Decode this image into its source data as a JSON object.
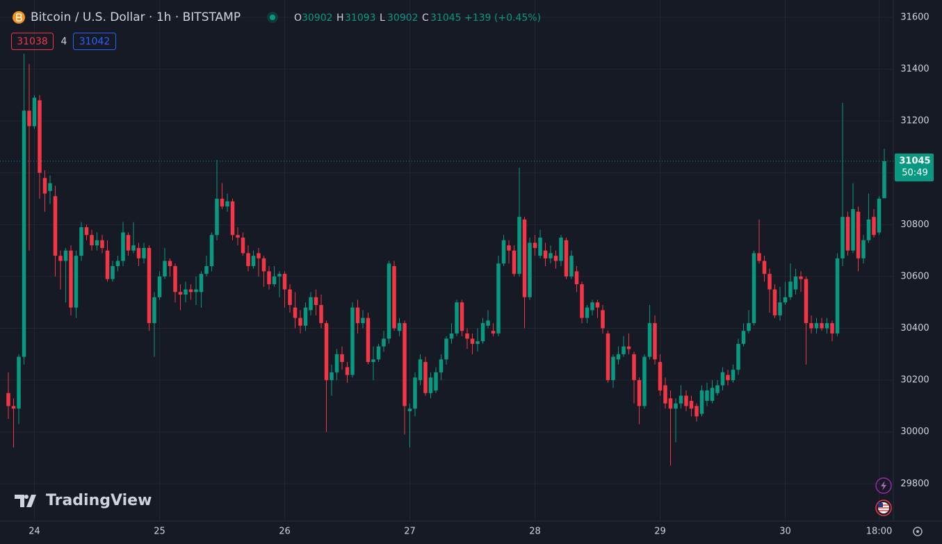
{
  "chart_data": {
    "type": "candlestick",
    "title": "Bitcoin / U.S. Dollar · 1h · BITSTAMP",
    "ohlc_letters": [
      "O",
      "H",
      "L",
      "C"
    ],
    "change": "+139 (+0.45%)",
    "bid": 31038,
    "spread": 4,
    "ask": 31042,
    "countdown": "50:49",
    "brand": "TradingView",
    "up_color": "#089981",
    "down_color": "#f23645",
    "ylim": [
      29656,
      31667
    ],
    "yticks": [
      29800,
      30000,
      30200,
      30400,
      30600,
      30800,
      31000,
      31200,
      31400,
      31600
    ],
    "grid": true,
    "categories": [
      null,
      null,
      null,
      null,
      null,
      "24",
      null,
      null,
      null,
      null,
      null,
      null,
      null,
      null,
      null,
      null,
      null,
      null,
      null,
      null,
      null,
      null,
      null,
      null,
      null,
      null,
      null,
      null,
      null,
      "25",
      null,
      null,
      null,
      null,
      null,
      null,
      null,
      null,
      null,
      null,
      null,
      null,
      null,
      null,
      null,
      null,
      null,
      null,
      null,
      null,
      null,
      null,
      null,
      "26",
      null,
      null,
      null,
      null,
      null,
      null,
      null,
      null,
      null,
      null,
      null,
      null,
      null,
      null,
      null,
      null,
      null,
      null,
      null,
      null,
      null,
      null,
      null,
      "27",
      null,
      null,
      null,
      null,
      null,
      null,
      null,
      null,
      null,
      null,
      null,
      null,
      null,
      null,
      null,
      null,
      null,
      null,
      null,
      null,
      null,
      null,
      null,
      "28",
      null,
      null,
      null,
      null,
      null,
      null,
      null,
      null,
      null,
      null,
      null,
      null,
      null,
      null,
      null,
      null,
      null,
      null,
      null,
      null,
      null,
      null,
      null,
      "29",
      null,
      null,
      null,
      null,
      null,
      null,
      null,
      null,
      null,
      null,
      null,
      null,
      null,
      null,
      null,
      null,
      null,
      null,
      null,
      null,
      null,
      null,
      null,
      "30",
      null,
      null,
      null,
      null,
      null,
      null,
      null,
      null,
      null,
      null,
      null,
      null,
      null,
      null,
      null,
      null,
      null,
      "18:00",
      null
    ],
    "values": [
      {
        "o": 30150,
        "h": 30230,
        "l": 30050,
        "c": 30100
      },
      {
        "o": 30100,
        "h": 30130,
        "l": 29940,
        "c": 30090
      },
      {
        "o": 30090,
        "h": 30300,
        "l": 30030,
        "c": 30290
      },
      {
        "o": 30290,
        "h": 31460,
        "l": 30260,
        "c": 31240
      },
      {
        "o": 31240,
        "h": 31420,
        "l": 30700,
        "c": 31180
      },
      {
        "o": 31180,
        "h": 31300,
        "l": 31170,
        "c": 31290
      },
      {
        "o": 31280,
        "h": 31300,
        "l": 30900,
        "c": 31000
      },
      {
        "o": 30980,
        "h": 31010,
        "l": 30850,
        "c": 30920
      },
      {
        "o": 30930,
        "h": 30990,
        "l": 30880,
        "c": 30960
      },
      {
        "o": 30910,
        "h": 30950,
        "l": 30600,
        "c": 30680
      },
      {
        "o": 30680,
        "h": 30700,
        "l": 30550,
        "c": 30660
      },
      {
        "o": 30660,
        "h": 30710,
        "l": 30500,
        "c": 30700
      },
      {
        "o": 30700,
        "h": 30720,
        "l": 30450,
        "c": 30480
      },
      {
        "o": 30480,
        "h": 30700,
        "l": 30440,
        "c": 30680
      },
      {
        "o": 30680,
        "h": 30810,
        "l": 30660,
        "c": 30790
      },
      {
        "o": 30790,
        "h": 30800,
        "l": 30740,
        "c": 30760
      },
      {
        "o": 30760,
        "h": 30780,
        "l": 30700,
        "c": 30720
      },
      {
        "o": 30720,
        "h": 30770,
        "l": 30700,
        "c": 30740
      },
      {
        "o": 30740,
        "h": 30760,
        "l": 30690,
        "c": 30710
      },
      {
        "o": 30700,
        "h": 30740,
        "l": 30580,
        "c": 30590
      },
      {
        "o": 30590,
        "h": 30660,
        "l": 30580,
        "c": 30640
      },
      {
        "o": 30640,
        "h": 30680,
        "l": 30620,
        "c": 30660
      },
      {
        "o": 30660,
        "h": 30810,
        "l": 30640,
        "c": 30770
      },
      {
        "o": 30760,
        "h": 30770,
        "l": 30680,
        "c": 30700
      },
      {
        "o": 30700,
        "h": 30810,
        "l": 30690,
        "c": 30720
      },
      {
        "o": 30710,
        "h": 30730,
        "l": 30640,
        "c": 30670
      },
      {
        "o": 30670,
        "h": 30730,
        "l": 30650,
        "c": 30710
      },
      {
        "o": 30710,
        "h": 30720,
        "l": 30390,
        "c": 30420
      },
      {
        "o": 30420,
        "h": 30540,
        "l": 30290,
        "c": 30520
      },
      {
        "o": 30520,
        "h": 30620,
        "l": 30510,
        "c": 30600
      },
      {
        "o": 30600,
        "h": 30710,
        "l": 30590,
        "c": 30660
      },
      {
        "o": 30660,
        "h": 30670,
        "l": 30600,
        "c": 30640
      },
      {
        "o": 30640,
        "h": 30650,
        "l": 30500,
        "c": 30540
      },
      {
        "o": 30540,
        "h": 30570,
        "l": 30470,
        "c": 30530
      },
      {
        "o": 30530,
        "h": 30580,
        "l": 30500,
        "c": 30550
      },
      {
        "o": 30550,
        "h": 30570,
        "l": 30510,
        "c": 30540
      },
      {
        "o": 30540,
        "h": 30600,
        "l": 30490,
        "c": 30550
      },
      {
        "o": 30540,
        "h": 30620,
        "l": 30480,
        "c": 30610
      },
      {
        "o": 30610,
        "h": 30680,
        "l": 30600,
        "c": 30640
      },
      {
        "o": 30640,
        "h": 30770,
        "l": 30620,
        "c": 30760
      },
      {
        "o": 30760,
        "h": 31050,
        "l": 30740,
        "c": 30900
      },
      {
        "o": 30900,
        "h": 30960,
        "l": 30860,
        "c": 30870
      },
      {
        "o": 30870,
        "h": 30920,
        "l": 30850,
        "c": 30890
      },
      {
        "o": 30890,
        "h": 30900,
        "l": 30740,
        "c": 30760
      },
      {
        "o": 30760,
        "h": 30790,
        "l": 30720,
        "c": 30750
      },
      {
        "o": 30750,
        "h": 30770,
        "l": 30680,
        "c": 30690
      },
      {
        "o": 30690,
        "h": 30720,
        "l": 30620,
        "c": 30640
      },
      {
        "o": 30640,
        "h": 30700,
        "l": 30630,
        "c": 30680
      },
      {
        "o": 30690,
        "h": 30710,
        "l": 30600,
        "c": 30670
      },
      {
        "o": 30670,
        "h": 30680,
        "l": 30560,
        "c": 30620
      },
      {
        "o": 30620,
        "h": 30640,
        "l": 30550,
        "c": 30570
      },
      {
        "o": 30570,
        "h": 30640,
        "l": 30560,
        "c": 30600
      },
      {
        "o": 30600,
        "h": 30620,
        "l": 30520,
        "c": 30610
      },
      {
        "o": 30610,
        "h": 30620,
        "l": 30480,
        "c": 30550
      },
      {
        "o": 30550,
        "h": 30570,
        "l": 30460,
        "c": 30490
      },
      {
        "o": 30480,
        "h": 30540,
        "l": 30400,
        "c": 30440
      },
      {
        "o": 30440,
        "h": 30470,
        "l": 30380,
        "c": 30410
      },
      {
        "o": 30410,
        "h": 30500,
        "l": 30390,
        "c": 30480
      },
      {
        "o": 30470,
        "h": 30540,
        "l": 30450,
        "c": 30520
      },
      {
        "o": 30520,
        "h": 30550,
        "l": 30450,
        "c": 30490
      },
      {
        "o": 30490,
        "h": 30530,
        "l": 30400,
        "c": 30420
      },
      {
        "o": 30420,
        "h": 30430,
        "l": 30000,
        "c": 30200
      },
      {
        "o": 30200,
        "h": 30260,
        "l": 30140,
        "c": 30230
      },
      {
        "o": 30230,
        "h": 30320,
        "l": 30200,
        "c": 30300
      },
      {
        "o": 30300,
        "h": 30330,
        "l": 30240,
        "c": 30270
      },
      {
        "o": 30250,
        "h": 30270,
        "l": 30190,
        "c": 30220
      },
      {
        "o": 30220,
        "h": 30500,
        "l": 30210,
        "c": 30480
      },
      {
        "o": 30480,
        "h": 30510,
        "l": 30380,
        "c": 30420
      },
      {
        "o": 30420,
        "h": 30470,
        "l": 30400,
        "c": 30440
      },
      {
        "o": 30440,
        "h": 30460,
        "l": 30260,
        "c": 30270
      },
      {
        "o": 30270,
        "h": 30330,
        "l": 30200,
        "c": 30280
      },
      {
        "o": 30280,
        "h": 30340,
        "l": 30270,
        "c": 30330
      },
      {
        "o": 30330,
        "h": 30390,
        "l": 30310,
        "c": 30360
      },
      {
        "o": 30360,
        "h": 30660,
        "l": 30340,
        "c": 30650
      },
      {
        "o": 30640,
        "h": 30660,
        "l": 30390,
        "c": 30400
      },
      {
        "o": 30390,
        "h": 30440,
        "l": 30370,
        "c": 30420
      },
      {
        "o": 30420,
        "h": 30430,
        "l": 29990,
        "c": 30100
      },
      {
        "o": 30080,
        "h": 30110,
        "l": 29940,
        "c": 30090
      },
      {
        "o": 30090,
        "h": 30230,
        "l": 30060,
        "c": 30210
      },
      {
        "o": 30200,
        "h": 30300,
        "l": 30180,
        "c": 30280
      },
      {
        "o": 30270,
        "h": 30290,
        "l": 30140,
        "c": 30150
      },
      {
        "o": 30150,
        "h": 30230,
        "l": 30130,
        "c": 30210
      },
      {
        "o": 30160,
        "h": 30250,
        "l": 30150,
        "c": 30230
      },
      {
        "o": 30230,
        "h": 30300,
        "l": 30200,
        "c": 30280
      },
      {
        "o": 30280,
        "h": 30370,
        "l": 30260,
        "c": 30360
      },
      {
        "o": 30360,
        "h": 30420,
        "l": 30340,
        "c": 30380
      },
      {
        "o": 30380,
        "h": 30510,
        "l": 30370,
        "c": 30500
      },
      {
        "o": 30500,
        "h": 30510,
        "l": 30370,
        "c": 30390
      },
      {
        "o": 30380,
        "h": 30400,
        "l": 30320,
        "c": 30360
      },
      {
        "o": 30360,
        "h": 30380,
        "l": 30300,
        "c": 30340
      },
      {
        "o": 30340,
        "h": 30400,
        "l": 30310,
        "c": 30350
      },
      {
        "o": 30350,
        "h": 30440,
        "l": 30340,
        "c": 30420
      },
      {
        "o": 30410,
        "h": 30470,
        "l": 30400,
        "c": 30430
      },
      {
        "o": 30390,
        "h": 30420,
        "l": 30370,
        "c": 30380
      },
      {
        "o": 30380,
        "h": 30680,
        "l": 30370,
        "c": 30650
      },
      {
        "o": 30650,
        "h": 30760,
        "l": 30640,
        "c": 30740
      },
      {
        "o": 30720,
        "h": 30740,
        "l": 30650,
        "c": 30700
      },
      {
        "o": 30700,
        "h": 30720,
        "l": 30600,
        "c": 30610
      },
      {
        "o": 30610,
        "h": 31020,
        "l": 30600,
        "c": 30830
      },
      {
        "o": 30820,
        "h": 30830,
        "l": 30400,
        "c": 30520
      },
      {
        "o": 30520,
        "h": 30750,
        "l": 30510,
        "c": 30730
      },
      {
        "o": 30730,
        "h": 30760,
        "l": 30680,
        "c": 30710
      },
      {
        "o": 30680,
        "h": 30780,
        "l": 30670,
        "c": 30750
      },
      {
        "o": 30700,
        "h": 30730,
        "l": 30640,
        "c": 30670
      },
      {
        "o": 30670,
        "h": 30720,
        "l": 30650,
        "c": 30690
      },
      {
        "o": 30680,
        "h": 30700,
        "l": 30630,
        "c": 30660
      },
      {
        "o": 30660,
        "h": 30760,
        "l": 30640,
        "c": 30750
      },
      {
        "o": 30740,
        "h": 30750,
        "l": 30590,
        "c": 30600
      },
      {
        "o": 30600,
        "h": 30700,
        "l": 30590,
        "c": 30680
      },
      {
        "o": 30620,
        "h": 30640,
        "l": 30540,
        "c": 30570
      },
      {
        "o": 30570,
        "h": 30580,
        "l": 30420,
        "c": 30440
      },
      {
        "o": 30440,
        "h": 30490,
        "l": 30420,
        "c": 30480
      },
      {
        "o": 30470,
        "h": 30510,
        "l": 30450,
        "c": 30500
      },
      {
        "o": 30500,
        "h": 30510,
        "l": 30440,
        "c": 30480
      },
      {
        "o": 30470,
        "h": 30490,
        "l": 30380,
        "c": 30400
      },
      {
        "o": 30380,
        "h": 30390,
        "l": 30190,
        "c": 30200
      },
      {
        "o": 30200,
        "h": 30300,
        "l": 30170,
        "c": 30290
      },
      {
        "o": 30280,
        "h": 30330,
        "l": 30260,
        "c": 30300
      },
      {
        "o": 30300,
        "h": 30370,
        "l": 30290,
        "c": 30330
      },
      {
        "o": 30330,
        "h": 30380,
        "l": 30300,
        "c": 30320
      },
      {
        "o": 30300,
        "h": 30310,
        "l": 30110,
        "c": 30200
      },
      {
        "o": 30200,
        "h": 30210,
        "l": 30030,
        "c": 30100
      },
      {
        "o": 30100,
        "h": 30300,
        "l": 30090,
        "c": 30290
      },
      {
        "o": 30290,
        "h": 30490,
        "l": 30280,
        "c": 30420
      },
      {
        "o": 30420,
        "h": 30450,
        "l": 30260,
        "c": 30280
      },
      {
        "o": 30270,
        "h": 30300,
        "l": 30140,
        "c": 30160
      },
      {
        "o": 30180,
        "h": 30210,
        "l": 30090,
        "c": 30110
      },
      {
        "o": 30130,
        "h": 30160,
        "l": 29870,
        "c": 30090
      },
      {
        "o": 30090,
        "h": 30130,
        "l": 29960,
        "c": 30110
      },
      {
        "o": 30110,
        "h": 30180,
        "l": 30090,
        "c": 30140
      },
      {
        "o": 30140,
        "h": 30160,
        "l": 30080,
        "c": 30100
      },
      {
        "o": 30120,
        "h": 30140,
        "l": 30060,
        "c": 30090
      },
      {
        "o": 30100,
        "h": 30110,
        "l": 30040,
        "c": 30060
      },
      {
        "o": 30070,
        "h": 30180,
        "l": 30060,
        "c": 30160
      },
      {
        "o": 30120,
        "h": 30190,
        "l": 30100,
        "c": 30160
      },
      {
        "o": 30120,
        "h": 30200,
        "l": 30110,
        "c": 30170
      },
      {
        "o": 30150,
        "h": 30200,
        "l": 30140,
        "c": 30180
      },
      {
        "o": 30180,
        "h": 30250,
        "l": 30160,
        "c": 30230
      },
      {
        "o": 30220,
        "h": 30240,
        "l": 30180,
        "c": 30200
      },
      {
        "o": 30200,
        "h": 30260,
        "l": 30190,
        "c": 30240
      },
      {
        "o": 30240,
        "h": 30360,
        "l": 30220,
        "c": 30340
      },
      {
        "o": 30340,
        "h": 30420,
        "l": 30330,
        "c": 30390
      },
      {
        "o": 30390,
        "h": 30470,
        "l": 30380,
        "c": 30420
      },
      {
        "o": 30420,
        "h": 30700,
        "l": 30410,
        "c": 30690
      },
      {
        "o": 30690,
        "h": 30820,
        "l": 30650,
        "c": 30660
      },
      {
        "o": 30660,
        "h": 30680,
        "l": 30580,
        "c": 30610
      },
      {
        "o": 30610,
        "h": 30630,
        "l": 30460,
        "c": 30550
      },
      {
        "o": 30550,
        "h": 30570,
        "l": 30440,
        "c": 30450
      },
      {
        "o": 30450,
        "h": 30560,
        "l": 30430,
        "c": 30500
      },
      {
        "o": 30500,
        "h": 30580,
        "l": 30490,
        "c": 30520
      },
      {
        "o": 30520,
        "h": 30650,
        "l": 30510,
        "c": 30580
      },
      {
        "o": 30550,
        "h": 30630,
        "l": 30530,
        "c": 30600
      },
      {
        "o": 30600,
        "h": 30620,
        "l": 30540,
        "c": 30590
      },
      {
        "o": 30590,
        "h": 30600,
        "l": 30260,
        "c": 30420
      },
      {
        "o": 30420,
        "h": 30450,
        "l": 30380,
        "c": 30400
      },
      {
        "o": 30400,
        "h": 30440,
        "l": 30380,
        "c": 30420
      },
      {
        "o": 30420,
        "h": 30440,
        "l": 30390,
        "c": 30400
      },
      {
        "o": 30400,
        "h": 30440,
        "l": 30380,
        "c": 30420
      },
      {
        "o": 30420,
        "h": 30430,
        "l": 30350,
        "c": 30380
      },
      {
        "o": 30380,
        "h": 30690,
        "l": 30370,
        "c": 30670
      },
      {
        "o": 30670,
        "h": 31270,
        "l": 30640,
        "c": 30830
      },
      {
        "o": 30830,
        "h": 30850,
        "l": 30680,
        "c": 30700
      },
      {
        "o": 30700,
        "h": 30960,
        "l": 30690,
        "c": 30860
      },
      {
        "o": 30850,
        "h": 30870,
        "l": 30620,
        "c": 30670
      },
      {
        "o": 30670,
        "h": 30760,
        "l": 30650,
        "c": 30740
      },
      {
        "o": 30740,
        "h": 30920,
        "l": 30730,
        "c": 30820
      },
      {
        "o": 30830,
        "h": 30860,
        "l": 30750,
        "c": 30760
      },
      {
        "o": 30770,
        "h": 30910,
        "l": 30760,
        "c": 30900
      },
      {
        "o": 30902,
        "h": 31093,
        "l": 30902,
        "c": 31045
      }
    ]
  }
}
